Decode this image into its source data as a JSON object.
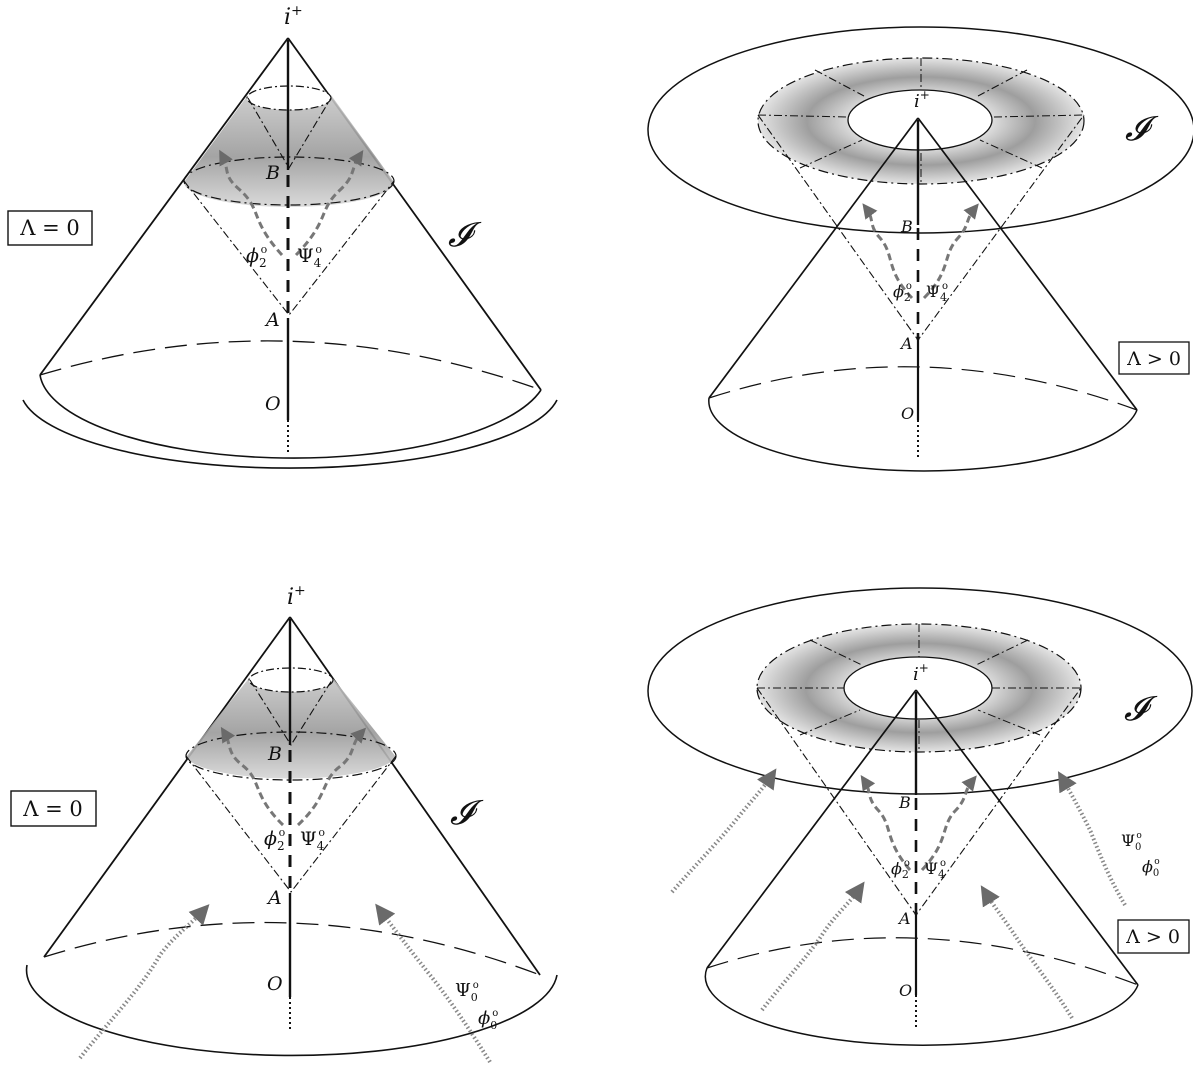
{
  "panels": [
    {
      "id": "top-left",
      "variant": "flat",
      "box_label": "Λ = 0",
      "labels": {
        "apex": "i",
        "apex_sup": "+",
        "scri": "𝓘",
        "point_b": "B",
        "point_a": "A",
        "origin": "O",
        "field_phi": "ϕ",
        "field_phi_sub": "2",
        "field_psi": "Ψ",
        "field_psi_sub": "4",
        "circle": "o"
      }
    },
    {
      "id": "top-right",
      "variant": "desitter",
      "box_label": "Λ > 0",
      "labels": {
        "apex": "i",
        "apex_sup": "+",
        "scri": "𝓘",
        "point_b": "B",
        "point_a": "A",
        "origin": "O",
        "field_phi": "ϕ",
        "field_phi_sub": "2",
        "field_psi": "Ψ",
        "field_psi_sub": "4",
        "circle": "o"
      }
    },
    {
      "id": "bottom-left",
      "variant": "flat",
      "box_label": "Λ = 0",
      "labels": {
        "apex": "i",
        "apex_sup": "+",
        "scri": "𝓘",
        "point_b": "B",
        "point_a": "A",
        "origin": "O",
        "field_phi": "ϕ",
        "field_phi_sub": "2",
        "field_psi": "Ψ",
        "field_psi_sub": "4",
        "circle": "o",
        "in_psi": "Ψ",
        "in_psi_sub": "0",
        "in_phi": "ϕ",
        "in_phi_sub": "0"
      }
    },
    {
      "id": "bottom-right",
      "variant": "desitter",
      "box_label": "Λ > 0",
      "labels": {
        "apex": "i",
        "apex_sup": "+",
        "scri": "𝓘",
        "point_b": "B",
        "point_a": "A",
        "origin": "O",
        "field_phi": "ϕ",
        "field_phi_sub": "2",
        "field_psi": "Ψ",
        "field_psi_sub": "4",
        "circle": "o",
        "in_psi": "Ψ",
        "in_psi_sub": "0",
        "in_phi": "ϕ",
        "in_phi_sub": "0"
      }
    }
  ]
}
